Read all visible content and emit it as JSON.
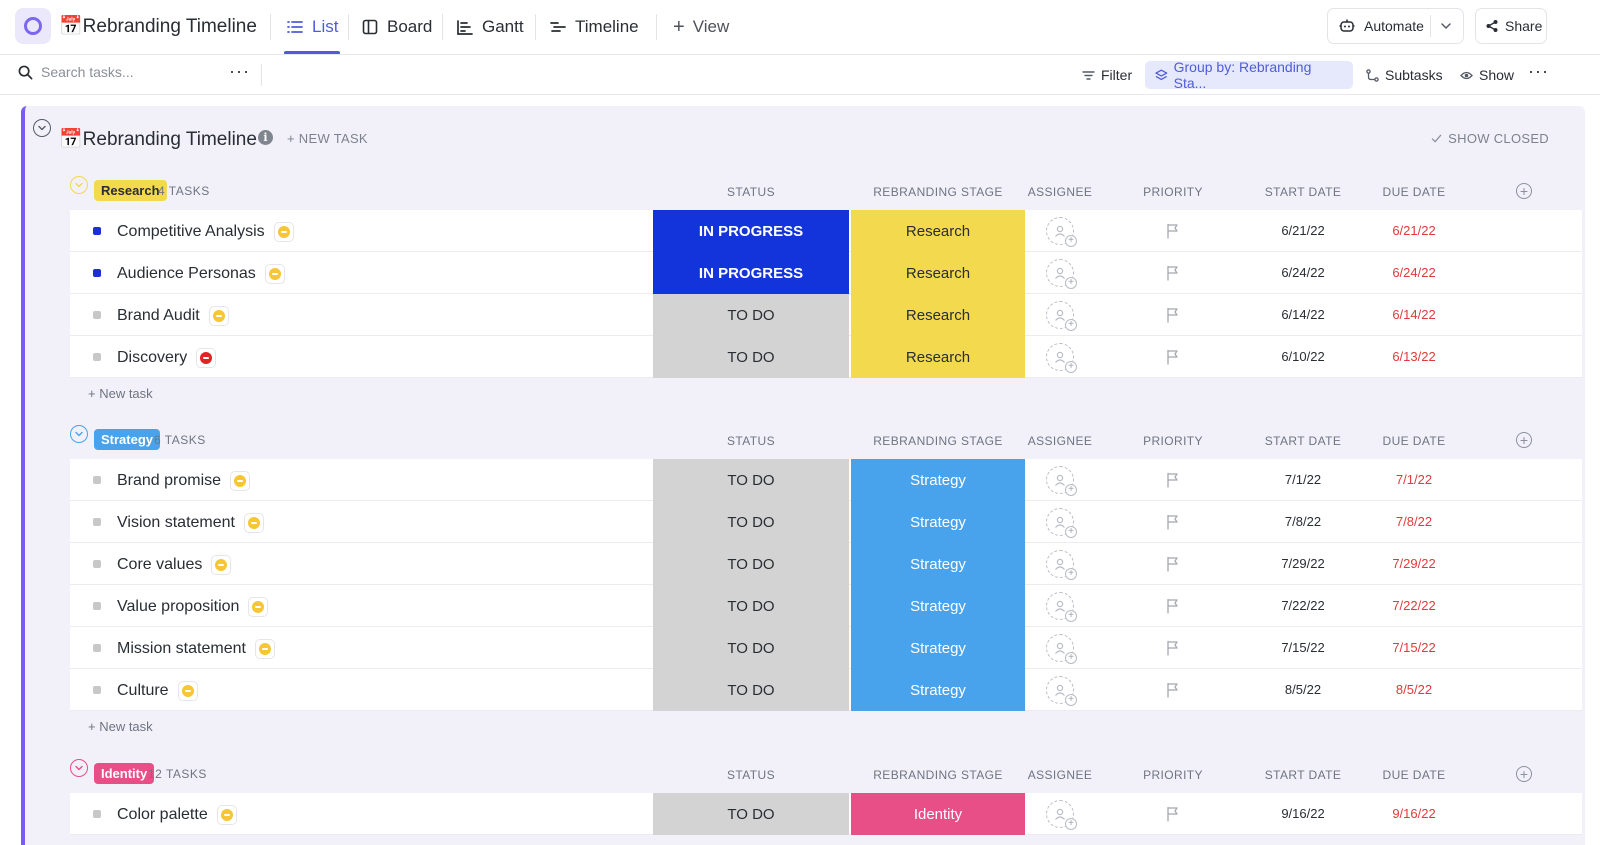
{
  "header": {
    "title": "📅Rebranding Timeline",
    "tabs": [
      {
        "label": "List",
        "icon": "list-icon",
        "active": true
      },
      {
        "label": "Board",
        "icon": "board-icon",
        "active": false
      },
      {
        "label": "Gantt",
        "icon": "gantt-icon",
        "active": false
      },
      {
        "label": "Timeline",
        "icon": "timeline-icon",
        "active": false
      }
    ],
    "add_view_label": "View",
    "automate_label": "Automate",
    "share_label": "Share"
  },
  "toolbar": {
    "search_placeholder": "Search tasks...",
    "filter_label": "Filter",
    "group_by_label": "Group by: Rebranding Sta...",
    "subtasks_label": "Subtasks",
    "show_label": "Show"
  },
  "list": {
    "title": "📅Rebranding Timeline",
    "new_task_label": "+ NEW TASK",
    "show_closed_label": "SHOW CLOSED",
    "add_task_label": "+ New task",
    "columns": {
      "status": "STATUS",
      "stage": "REBRANDING STAGE",
      "assignee": "ASSIGNEE",
      "priority": "PRIORITY",
      "start": "START DATE",
      "due": "DUE DATE"
    },
    "groups": [
      {
        "name": "Research",
        "count": "4 TASKS",
        "color": "#f2d94e",
        "text_color": "#292d34",
        "stage_text_color": "#292d34",
        "tasks": [
          {
            "name": "Competitive Analysis",
            "status": "IN PROGRESS",
            "priority": "normal",
            "start": "6/21/22",
            "due": "6/21/22"
          },
          {
            "name": "Audience Personas",
            "status": "IN PROGRESS",
            "priority": "normal",
            "start": "6/24/22",
            "due": "6/24/22"
          },
          {
            "name": "Brand Audit",
            "status": "TO DO",
            "priority": "normal",
            "start": "6/14/22",
            "due": "6/14/22"
          },
          {
            "name": "Discovery",
            "status": "TO DO",
            "priority": "urgent",
            "start": "6/10/22",
            "due": "6/13/22"
          }
        ]
      },
      {
        "name": "Strategy",
        "count": "6 TASKS",
        "color": "#49a3ec",
        "text_color": "#ffffff",
        "stage_text_color": "#ffffff",
        "tasks": [
          {
            "name": "Brand promise",
            "status": "TO DO",
            "priority": "normal",
            "start": "7/1/22",
            "due": "7/1/22"
          },
          {
            "name": "Vision statement",
            "status": "TO DO",
            "priority": "normal",
            "start": "7/8/22",
            "due": "7/8/22"
          },
          {
            "name": "Core values",
            "status": "TO DO",
            "priority": "normal",
            "start": "7/29/22",
            "due": "7/29/22"
          },
          {
            "name": "Value proposition",
            "status": "TO DO",
            "priority": "normal",
            "start": "7/22/22",
            "due": "7/22/22"
          },
          {
            "name": "Mission statement",
            "status": "TO DO",
            "priority": "normal",
            "start": "7/15/22",
            "due": "7/15/22"
          },
          {
            "name": "Culture",
            "status": "TO DO",
            "priority": "normal",
            "start": "8/5/22",
            "due": "8/5/22"
          }
        ]
      },
      {
        "name": "Identity",
        "count": "12 TASKS",
        "color": "#e94f87",
        "text_color": "#ffffff",
        "stage_text_color": "#ffffff",
        "tasks": [
          {
            "name": "Color palette",
            "status": "TO DO",
            "priority": "normal",
            "start": "9/16/22",
            "due": "9/16/22"
          }
        ]
      }
    ]
  },
  "colors": {
    "accent": "#4f5cda",
    "in_progress_bg": "#1334db",
    "in_progress_sq": "#1a2fd6",
    "todo_bg": "#d3d3d3",
    "todo_sq": "#c8c8c8",
    "due_red": "#e03a3a",
    "priority_normal": "#f7c633",
    "priority_urgent": "#e02424",
    "panel_border": "#7b5cf0"
  }
}
